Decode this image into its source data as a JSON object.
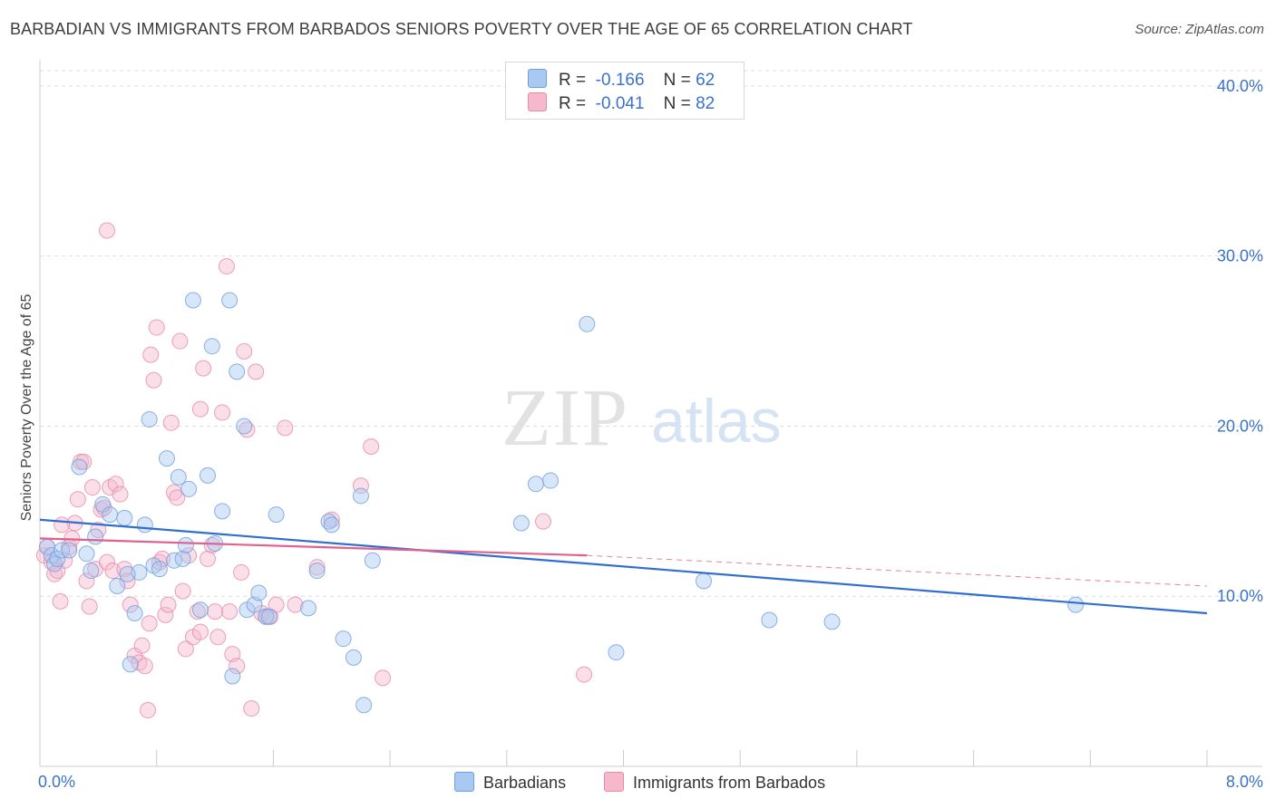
{
  "title": "BARBADIAN VS IMMIGRANTS FROM BARBADOS SENIORS POVERTY OVER THE AGE OF 65 CORRELATION CHART",
  "source": "Source: ZipAtlas.com",
  "watermark": {
    "zip": "ZIP",
    "atlas": "atlas"
  },
  "legend_top": [
    {
      "r_label": "R =",
      "r_value": "-0.166",
      "n_label": "N =",
      "n_value": "62"
    },
    {
      "r_label": "R =",
      "r_value": "-0.041",
      "n_label": "N =",
      "n_value": "82"
    }
  ],
  "legend_bottom": [
    "Barbadians",
    "Immigrants from Barbados"
  ],
  "colors": {
    "blue_fill": "#a9c8f2",
    "blue_stroke": "#6f9fdc",
    "blue_line": "#2f6fcf",
    "pink_fill": "#f6b9cc",
    "pink_stroke": "#e58aa8",
    "pink_line": "#e0608e",
    "axis_text": "#3a72c8",
    "grid": "#dddddd"
  },
  "chart_data": {
    "type": "scatter",
    "title": "BARBADIAN VS IMMIGRANTS FROM BARBADOS SENIORS POVERTY OVER THE AGE OF 65 CORRELATION CHART",
    "xlabel": "",
    "ylabel": "Seniors Poverty Over the Age of 65",
    "xlim": [
      0,
      8
    ],
    "ylim": [
      0,
      40
    ],
    "x_tick_labels": [
      "0.0%",
      "8.0%"
    ],
    "y_ticks": [
      10,
      20,
      30,
      40
    ],
    "y_tick_labels": [
      "10.0%",
      "20.0%",
      "30.0%",
      "40.0%"
    ],
    "grid": true,
    "series": [
      {
        "name": "Barbadians",
        "r": -0.166,
        "n": 62,
        "trend": {
          "x": [
            0,
            8
          ],
          "y": [
            14.5,
            9.0
          ],
          "dashed_extension": false
        },
        "points": [
          [
            0.05,
            12.9
          ],
          [
            0.08,
            12.4
          ],
          [
            0.1,
            11.9
          ],
          [
            0.12,
            12.2
          ],
          [
            0.15,
            12.7
          ],
          [
            0.2,
            12.7
          ],
          [
            0.27,
            17.6
          ],
          [
            0.32,
            12.5
          ],
          [
            0.35,
            11.5
          ],
          [
            0.38,
            13.5
          ],
          [
            0.43,
            15.4
          ],
          [
            0.48,
            14.8
          ],
          [
            0.53,
            10.6
          ],
          [
            0.58,
            14.6
          ],
          [
            0.62,
            6.0
          ],
          [
            0.65,
            9.0
          ],
          [
            0.68,
            11.4
          ],
          [
            0.72,
            14.2
          ],
          [
            0.75,
            20.4
          ],
          [
            0.78,
            11.8
          ],
          [
            0.82,
            11.6
          ],
          [
            0.87,
            18.1
          ],
          [
            0.92,
            12.1
          ],
          [
            0.95,
            17.0
          ],
          [
            0.98,
            12.2
          ],
          [
            1.0,
            13.0
          ],
          [
            1.02,
            16.3
          ],
          [
            1.05,
            27.4
          ],
          [
            1.1,
            9.2
          ],
          [
            1.15,
            17.1
          ],
          [
            1.18,
            24.7
          ],
          [
            1.25,
            15.0
          ],
          [
            1.3,
            27.4
          ],
          [
            1.32,
            5.3
          ],
          [
            1.35,
            23.2
          ],
          [
            1.4,
            20.0
          ],
          [
            1.42,
            9.2
          ],
          [
            1.47,
            9.5
          ],
          [
            1.5,
            10.2
          ],
          [
            1.55,
            8.8
          ],
          [
            1.62,
            14.8
          ],
          [
            1.84,
            9.3
          ],
          [
            1.9,
            11.5
          ],
          [
            1.98,
            14.4
          ],
          [
            2.0,
            14.2
          ],
          [
            2.08,
            7.5
          ],
          [
            2.15,
            6.4
          ],
          [
            2.2,
            15.9
          ],
          [
            2.22,
            3.6
          ],
          [
            2.28,
            12.1
          ],
          [
            3.3,
            14.3
          ],
          [
            3.4,
            16.6
          ],
          [
            3.5,
            16.8
          ],
          [
            3.75,
            26.0
          ],
          [
            3.95,
            6.7
          ],
          [
            4.55,
            10.9
          ],
          [
            5.0,
            8.6
          ],
          [
            5.43,
            8.5
          ],
          [
            7.1,
            9.5
          ],
          [
            1.57,
            8.8
          ],
          [
            0.6,
            11.3
          ],
          [
            1.2,
            13.1
          ]
        ]
      },
      {
        "name": "Immigrants from Barbados",
        "r": -0.041,
        "n": 82,
        "trend": {
          "x": [
            0,
            3.75
          ],
          "y": [
            13.4,
            12.4
          ],
          "dashed_x": [
            3.75,
            8
          ],
          "dashed_y": [
            12.4,
            10.6
          ]
        },
        "points": [
          [
            0.03,
            12.4
          ],
          [
            0.05,
            12.9
          ],
          [
            0.08,
            12.0
          ],
          [
            0.1,
            11.3
          ],
          [
            0.12,
            11.5
          ],
          [
            0.14,
            9.7
          ],
          [
            0.17,
            12.1
          ],
          [
            0.2,
            12.9
          ],
          [
            0.22,
            13.4
          ],
          [
            0.24,
            14.3
          ],
          [
            0.26,
            15.7
          ],
          [
            0.28,
            17.9
          ],
          [
            0.3,
            17.9
          ],
          [
            0.32,
            10.9
          ],
          [
            0.34,
            9.4
          ],
          [
            0.36,
            16.4
          ],
          [
            0.38,
            11.6
          ],
          [
            0.4,
            13.9
          ],
          [
            0.42,
            15.1
          ],
          [
            0.44,
            15.2
          ],
          [
            0.46,
            12.0
          ],
          [
            0.48,
            16.4
          ],
          [
            0.5,
            11.5
          ],
          [
            0.52,
            16.6
          ],
          [
            0.55,
            16.0
          ],
          [
            0.58,
            11.6
          ],
          [
            0.6,
            10.9
          ],
          [
            0.62,
            9.5
          ],
          [
            0.65,
            6.5
          ],
          [
            0.68,
            6.1
          ],
          [
            0.7,
            7.1
          ],
          [
            0.72,
            5.9
          ],
          [
            0.74,
            3.3
          ],
          [
            0.76,
            24.2
          ],
          [
            0.78,
            22.7
          ],
          [
            0.8,
            25.8
          ],
          [
            0.82,
            12.0
          ],
          [
            0.84,
            12.2
          ],
          [
            0.86,
            8.9
          ],
          [
            0.88,
            9.5
          ],
          [
            0.9,
            20.2
          ],
          [
            0.92,
            16.1
          ],
          [
            0.94,
            15.8
          ],
          [
            0.96,
            25.0
          ],
          [
            0.98,
            10.3
          ],
          [
            1.0,
            6.9
          ],
          [
            1.02,
            12.4
          ],
          [
            1.05,
            7.6
          ],
          [
            1.08,
            9.1
          ],
          [
            1.1,
            7.9
          ],
          [
            1.12,
            23.4
          ],
          [
            1.15,
            12.2
          ],
          [
            1.18,
            13.0
          ],
          [
            1.2,
            9.1
          ],
          [
            1.22,
            7.6
          ],
          [
            1.25,
            20.8
          ],
          [
            1.28,
            29.4
          ],
          [
            1.3,
            9.1
          ],
          [
            1.32,
            6.6
          ],
          [
            1.35,
            5.9
          ],
          [
            1.38,
            11.4
          ],
          [
            1.4,
            24.4
          ],
          [
            1.42,
            19.8
          ],
          [
            1.45,
            3.4
          ],
          [
            1.48,
            23.2
          ],
          [
            1.52,
            9.0
          ],
          [
            1.58,
            8.8
          ],
          [
            1.62,
            9.5
          ],
          [
            1.68,
            19.9
          ],
          [
            1.75,
            9.5
          ],
          [
            1.9,
            11.7
          ],
          [
            2.0,
            14.5
          ],
          [
            2.2,
            16.5
          ],
          [
            2.27,
            18.8
          ],
          [
            2.35,
            5.2
          ],
          [
            3.45,
            14.4
          ],
          [
            3.73,
            5.4
          ],
          [
            0.46,
            31.5
          ],
          [
            0.75,
            8.4
          ],
          [
            1.55,
            8.8
          ],
          [
            1.1,
            21.0
          ],
          [
            0.15,
            14.2
          ]
        ]
      }
    ]
  }
}
